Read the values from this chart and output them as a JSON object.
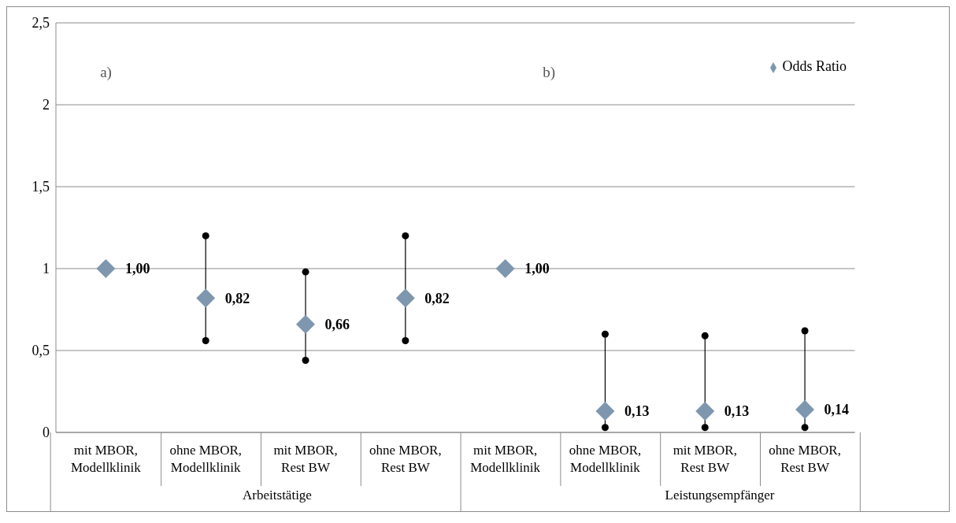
{
  "chart_data": {
    "type": "scatter",
    "categories": [
      "mit MBOR, Modellklinik",
      "ohne MBOR, Modellklinik",
      "mit MBOR, Rest BW",
      "ohne MBOR, Rest BW",
      "mit MBOR, Modellklinik",
      "ohne MBOR, Modellklinik",
      "mit MBOR, Rest BW",
      "ohne MBOR, Rest BW"
    ],
    "series": [
      {
        "name": "Odds Ratio",
        "color": "#7f97ae",
        "values": [
          1,
          0.82,
          0.66,
          0.82,
          1,
          0.13,
          0.13,
          0.14
        ],
        "errors": [
          null,
          [
            0.56,
            1.2
          ],
          [
            0.44,
            0.98
          ],
          [
            0.56,
            1.2
          ],
          null,
          [
            0.03,
            0.6
          ],
          [
            0.03,
            0.59
          ],
          [
            0.03,
            0.62
          ]
        ],
        "value_labels": [
          "1,00",
          "0,82",
          "0,66",
          "0,82",
          "1,00",
          "0,13",
          "0,13",
          "0,14"
        ]
      }
    ],
    "ylim": [
      0,
      2.5
    ],
    "yticks": [
      0,
      {
        "value": 0.5,
        "label": "0,5"
      },
      1,
      {
        "value": 1.5,
        "label": "1,5"
      },
      2,
      {
        "value": 2.5,
        "label": "2,5"
      }
    ],
    "grid": "y",
    "legend": "top right",
    "marker": "diamond",
    "annotations": [
      "a)",
      "b)",
      "Arbeitstätige",
      "Leistungsempfänger"
    ]
  }
}
